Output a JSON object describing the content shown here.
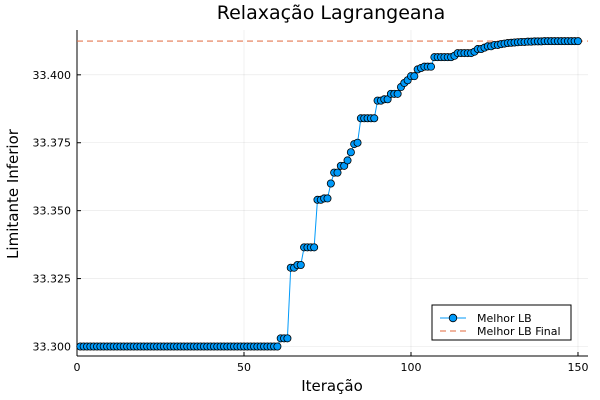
{
  "chart_data": {
    "type": "line",
    "title": "Relaxação Lagrangeana",
    "xlabel": "Iteração",
    "ylabel": "Limitante Inferior",
    "xlim": [
      0,
      153
    ],
    "ylim": [
      33.2965,
      33.4165
    ],
    "xticks": [
      0,
      50,
      100,
      150
    ],
    "yticks": [
      33.3,
      33.325,
      33.35,
      33.375,
      33.4
    ],
    "xtick_labels": [
      "0",
      "50",
      "100",
      "150"
    ],
    "ytick_labels": [
      "33.300",
      "33.325",
      "33.350",
      "33.375",
      "33.400"
    ],
    "grid": true,
    "legend_position": "bottom-right",
    "series": [
      {
        "name": "Melhor LB",
        "color": "#009AFA",
        "marker": "circle",
        "x": [
          1,
          2,
          3,
          4,
          5,
          6,
          7,
          8,
          9,
          10,
          11,
          12,
          13,
          14,
          15,
          16,
          17,
          18,
          19,
          20,
          21,
          22,
          23,
          24,
          25,
          26,
          27,
          28,
          29,
          30,
          31,
          32,
          33,
          34,
          35,
          36,
          37,
          38,
          39,
          40,
          41,
          42,
          43,
          44,
          45,
          46,
          47,
          48,
          49,
          50,
          51,
          52,
          53,
          54,
          55,
          56,
          57,
          58,
          59,
          60,
          61,
          62,
          63,
          64,
          65,
          66,
          67,
          68,
          69,
          70,
          71,
          72,
          73,
          74,
          75,
          76,
          77,
          78,
          79,
          80,
          81,
          82,
          83,
          84,
          85,
          86,
          87,
          88,
          89,
          90,
          91,
          92,
          93,
          94,
          95,
          96,
          97,
          98,
          99,
          100,
          101,
          102,
          103,
          104,
          105,
          106,
          107,
          108,
          109,
          110,
          111,
          112,
          113,
          114,
          115,
          116,
          117,
          118,
          119,
          120,
          121,
          122,
          123,
          124,
          125,
          126,
          127,
          128,
          129,
          130,
          131,
          132,
          133,
          134,
          135,
          136,
          137,
          138,
          139,
          140,
          141,
          142,
          143,
          144,
          145,
          146,
          147,
          148,
          149,
          150
        ],
        "values": [
          33.3,
          33.3,
          33.3,
          33.3,
          33.3,
          33.3,
          33.3,
          33.3,
          33.3,
          33.3,
          33.3,
          33.3,
          33.3,
          33.3,
          33.3,
          33.3,
          33.3,
          33.3,
          33.3,
          33.3,
          33.3,
          33.3,
          33.3,
          33.3,
          33.3,
          33.3,
          33.3,
          33.3,
          33.3,
          33.3,
          33.3,
          33.3,
          33.3,
          33.3,
          33.3,
          33.3,
          33.3,
          33.3,
          33.3,
          33.3,
          33.3,
          33.3,
          33.3,
          33.3,
          33.3,
          33.3,
          33.3,
          33.3,
          33.3,
          33.3,
          33.3,
          33.3,
          33.3,
          33.3,
          33.3,
          33.3,
          33.3,
          33.3,
          33.3,
          33.3,
          33.303,
          33.303,
          33.303,
          33.329,
          33.329,
          33.33,
          33.33,
          33.3365,
          33.3365,
          33.3365,
          33.3365,
          33.354,
          33.354,
          33.3545,
          33.3545,
          33.36,
          33.364,
          33.364,
          33.3665,
          33.3665,
          33.3685,
          33.3715,
          33.3745,
          33.375,
          33.384,
          33.384,
          33.384,
          33.384,
          33.384,
          33.3905,
          33.3905,
          33.391,
          33.391,
          33.393,
          33.393,
          33.393,
          33.3955,
          33.397,
          33.398,
          33.3995,
          33.3995,
          33.402,
          33.4025,
          33.403,
          33.403,
          33.403,
          33.4065,
          33.4065,
          33.4065,
          33.4065,
          33.4065,
          33.4065,
          33.407,
          33.408,
          33.408,
          33.408,
          33.408,
          33.408,
          33.4085,
          33.4095,
          33.4095,
          33.41,
          33.4105,
          33.4105,
          33.411,
          33.411,
          33.4113,
          33.4115,
          33.4117,
          33.4118,
          33.4119,
          33.412,
          33.4121,
          33.4121,
          33.4122,
          33.4122,
          33.4123,
          33.4123,
          33.4123,
          33.4124,
          33.4124,
          33.4124,
          33.4124,
          33.4124,
          33.4124,
          33.4124,
          33.4124,
          33.4124,
          33.4124,
          33.4124
        ]
      },
      {
        "name": "Melhor LB Final",
        "color": "#E26F46",
        "style": "dashed",
        "value": 33.4124
      }
    ]
  }
}
